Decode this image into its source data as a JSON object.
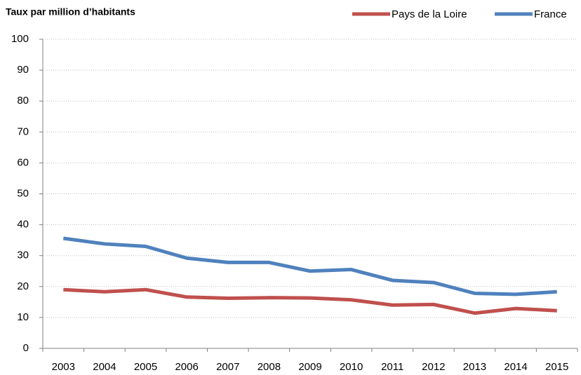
{
  "chart_data": {
    "type": "line",
    "title": "Taux par million d’habitants",
    "categories": [
      "2003",
      "2004",
      "2005",
      "2006",
      "2007",
      "2008",
      "2009",
      "2010",
      "2011",
      "2012",
      "2013",
      "2014",
      "2015"
    ],
    "series": [
      {
        "name": "Pays de la Loire",
        "color": "#c0504d",
        "values": [
          19,
          18.3,
          19,
          16.6,
          16.2,
          16.4,
          16.3,
          15.7,
          14,
          14.2,
          11.4,
          12.9,
          12.2
        ]
      },
      {
        "name": "France",
        "color": "#4f81bd",
        "values": [
          35.6,
          33.8,
          33,
          29.2,
          27.8,
          27.8,
          25,
          25.5,
          22,
          21.3,
          17.8,
          17.5,
          18.3
        ]
      }
    ],
    "ylim": [
      0,
      100
    ],
    "yticks": [
      0,
      10,
      20,
      30,
      40,
      50,
      60,
      70,
      80,
      90,
      100
    ],
    "grid": true,
    "legend": "top-right"
  }
}
